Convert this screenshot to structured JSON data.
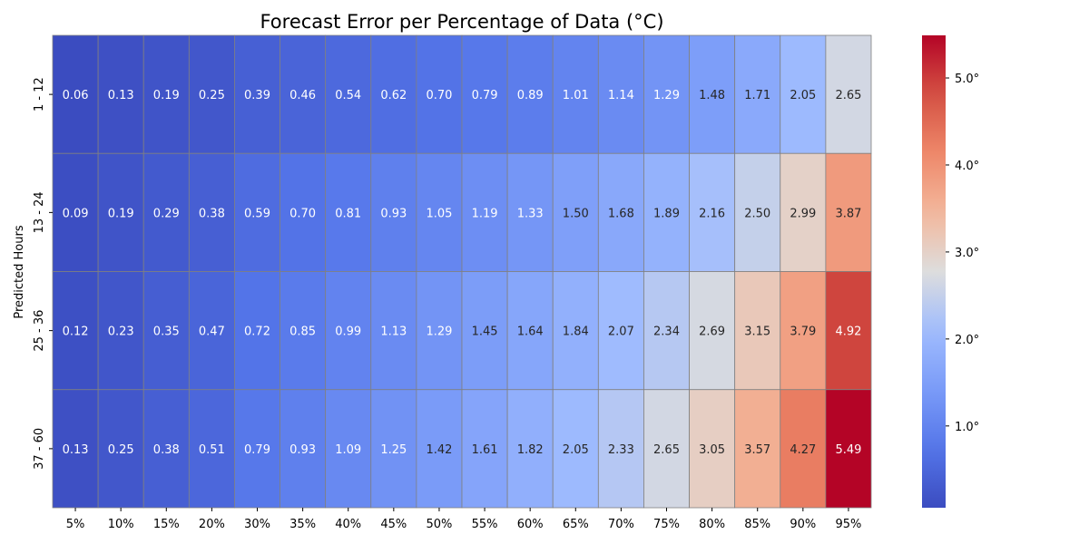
{
  "chart_data": {
    "type": "heatmap",
    "title": "Forecast Error per Percentage of Data (°C)",
    "xlabel": "",
    "ylabel": "Predicted Hours",
    "x_categories": [
      "5%",
      "10%",
      "15%",
      "20%",
      "30%",
      "35%",
      "40%",
      "45%",
      "50%",
      "55%",
      "60%",
      "65%",
      "70%",
      "75%",
      "80%",
      "85%",
      "90%",
      "95%"
    ],
    "y_categories": [
      "1 - 12",
      "13 - 24",
      "25 - 36",
      "37 - 60"
    ],
    "values": [
      [
        0.06,
        0.13,
        0.19,
        0.25,
        0.39,
        0.46,
        0.54,
        0.62,
        0.7,
        0.79,
        0.89,
        1.01,
        1.14,
        1.29,
        1.48,
        1.71,
        2.05,
        2.65
      ],
      [
        0.09,
        0.19,
        0.29,
        0.38,
        0.59,
        0.7,
        0.81,
        0.93,
        1.05,
        1.19,
        1.33,
        1.5,
        1.68,
        1.89,
        2.16,
        2.5,
        2.99,
        3.87
      ],
      [
        0.12,
        0.23,
        0.35,
        0.47,
        0.72,
        0.85,
        0.99,
        1.13,
        1.29,
        1.45,
        1.64,
        1.84,
        2.07,
        2.34,
        2.69,
        3.15,
        3.79,
        4.92
      ],
      [
        0.13,
        0.25,
        0.38,
        0.51,
        0.79,
        0.93,
        1.09,
        1.25,
        1.42,
        1.61,
        1.82,
        2.05,
        2.33,
        2.65,
        3.05,
        3.57,
        4.27,
        5.49
      ]
    ],
    "value_format": "2 decimals",
    "colormap": "coolwarm",
    "vmin": 0.06,
    "vmax": 5.49,
    "colorbar": {
      "ticks": [
        1,
        2,
        3,
        4,
        5
      ],
      "tick_labels": [
        "1.0°",
        "2.0°",
        "3.0°",
        "4.0°",
        "5.0°"
      ],
      "placement": "right"
    },
    "cell_border_color": "#808080",
    "grid": false
  }
}
